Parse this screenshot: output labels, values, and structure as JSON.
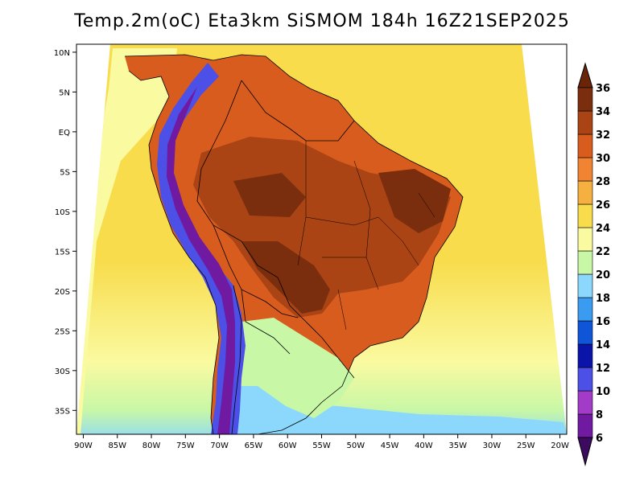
{
  "title": "Temp.2m(oC) Eta3km SiSMOM 184h 16Z21SEP2025",
  "map": {
    "variable": "2 m temperature",
    "units": "oC",
    "lon_range": [
      -91,
      -19
    ],
    "lat_range": [
      -38,
      11
    ],
    "lon_ticks": [
      {
        "value": -90,
        "label": "90W"
      },
      {
        "value": -85,
        "label": "85W"
      },
      {
        "value": -80,
        "label": "80W"
      },
      {
        "value": -75,
        "label": "75W"
      },
      {
        "value": -70,
        "label": "70W"
      },
      {
        "value": -65,
        "label": "65W"
      },
      {
        "value": -60,
        "label": "60W"
      },
      {
        "value": -55,
        "label": "55W"
      },
      {
        "value": -50,
        "label": "50W"
      },
      {
        "value": -45,
        "label": "45W"
      },
      {
        "value": -40,
        "label": "40W"
      },
      {
        "value": -35,
        "label": "35W"
      },
      {
        "value": -30,
        "label": "30W"
      },
      {
        "value": -25,
        "label": "25W"
      },
      {
        "value": -20,
        "label": "20W"
      }
    ],
    "lat_ticks": [
      {
        "value": 10,
        "label": "10N"
      },
      {
        "value": 5,
        "label": "5N"
      },
      {
        "value": 0,
        "label": "EQ"
      },
      {
        "value": -5,
        "label": "5S"
      },
      {
        "value": -10,
        "label": "10S"
      },
      {
        "value": -15,
        "label": "15S"
      },
      {
        "value": -20,
        "label": "20S"
      },
      {
        "value": -25,
        "label": "25S"
      },
      {
        "value": -30,
        "label": "30S"
      },
      {
        "value": -35,
        "label": "35S"
      }
    ]
  },
  "colorbar": {
    "levels": [
      {
        "value": 6,
        "label": "6",
        "color": "#3c0a5e"
      },
      {
        "value": 8,
        "label": "8",
        "color": "#6f1aa0"
      },
      {
        "value": 10,
        "label": "10",
        "color": "#a23cc8"
      },
      {
        "value": 12,
        "label": "12",
        "color": "#4c50e6"
      },
      {
        "value": 14,
        "label": "14",
        "color": "#0b14a8"
      },
      {
        "value": 16,
        "label": "16",
        "color": "#0f55d8"
      },
      {
        "value": 18,
        "label": "18",
        "color": "#3a9cf0"
      },
      {
        "value": 20,
        "label": "20",
        "color": "#8cd8fc"
      },
      {
        "value": 22,
        "label": "22",
        "color": "#c8f7a6"
      },
      {
        "value": 24,
        "label": "24",
        "color": "#fafaa0"
      },
      {
        "value": 26,
        "label": "26",
        "color": "#f8dc4c"
      },
      {
        "value": 28,
        "label": "28",
        "color": "#f5b040"
      },
      {
        "value": 30,
        "label": "30",
        "color": "#f08432"
      },
      {
        "value": 32,
        "label": "32",
        "color": "#d85c1e"
      },
      {
        "value": 34,
        "label": "34",
        "color": "#aa4414"
      },
      {
        "value": 36,
        "label": "36",
        "color": "#7a2e0e"
      }
    ],
    "below_color": "#3c0a5e",
    "above_color": "#6a2408"
  },
  "colors": {
    "ocean_warm": "#f8dc4c",
    "ocean_mid": "#fafaa0",
    "ocean_cool": "#c8f7a6",
    "ocean_cold": "#8cd8fc",
    "land_hot": "#d85c1e",
    "land_very_hot": "#aa4414",
    "land_extreme": "#7a2e0e",
    "andes_cold": "#4c50e6",
    "andes_coldest": "#6f1aa0",
    "border": "#000000"
  }
}
